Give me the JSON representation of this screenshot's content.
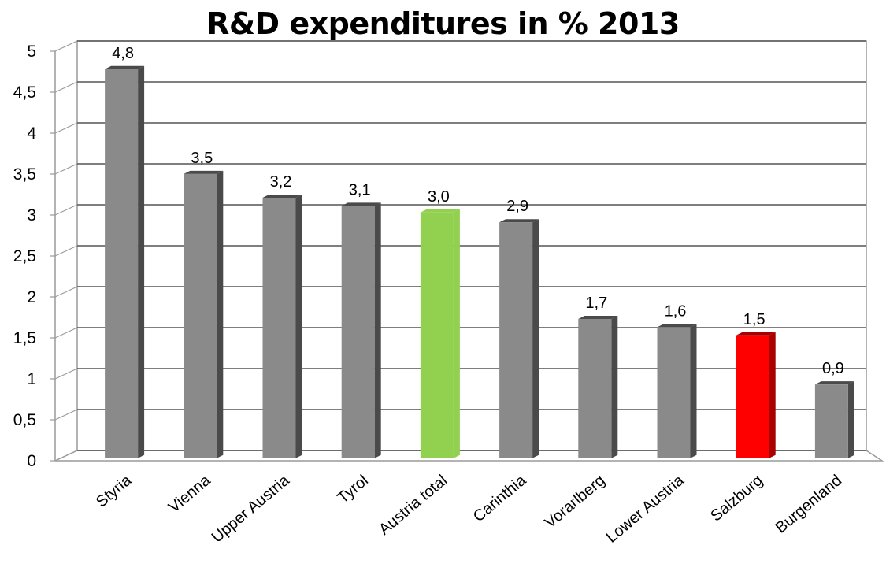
{
  "chart_data": {
    "type": "bar",
    "title": "R&D expenditures in % 2013",
    "xlabel": "",
    "ylabel": "",
    "ylim": [
      0,
      5
    ],
    "yticks": [
      "0",
      "0,5",
      "1",
      "1,5",
      "2",
      "2,5",
      "3",
      "3,5",
      "4",
      "4,5",
      "5"
    ],
    "grid": true,
    "legend": "none",
    "style": "3d-column",
    "categories": [
      "Styria",
      "Vienna",
      "Upper Austria",
      "Tyrol",
      "Austria total",
      "Carinthia",
      "Vorarlberg",
      "Lower Austria",
      "Salzburg",
      "Burgenland"
    ],
    "values": [
      4.75,
      3.47,
      3.18,
      3.08,
      3.0,
      2.88,
      1.7,
      1.6,
      1.5,
      0.9
    ],
    "data_labels": [
      "4,8",
      "3,5",
      "3,2",
      "3,1",
      "3,0",
      "2,9",
      "1,7",
      "1,6",
      "1,5",
      "0,9"
    ],
    "colors": [
      "#8a8a8a",
      "#8a8a8a",
      "#8a8a8a",
      "#8a8a8a",
      "#92d050",
      "#8a8a8a",
      "#8a8a8a",
      "#8a8a8a",
      "#ff0000",
      "#8a8a8a"
    ],
    "side_colors": [
      "#4a4a4a",
      "#4a4a4a",
      "#4a4a4a",
      "#4a4a4a",
      "#92d050",
      "#4a4a4a",
      "#4a4a4a",
      "#4a4a4a",
      "#a80000",
      "#4a4a4a"
    ]
  }
}
